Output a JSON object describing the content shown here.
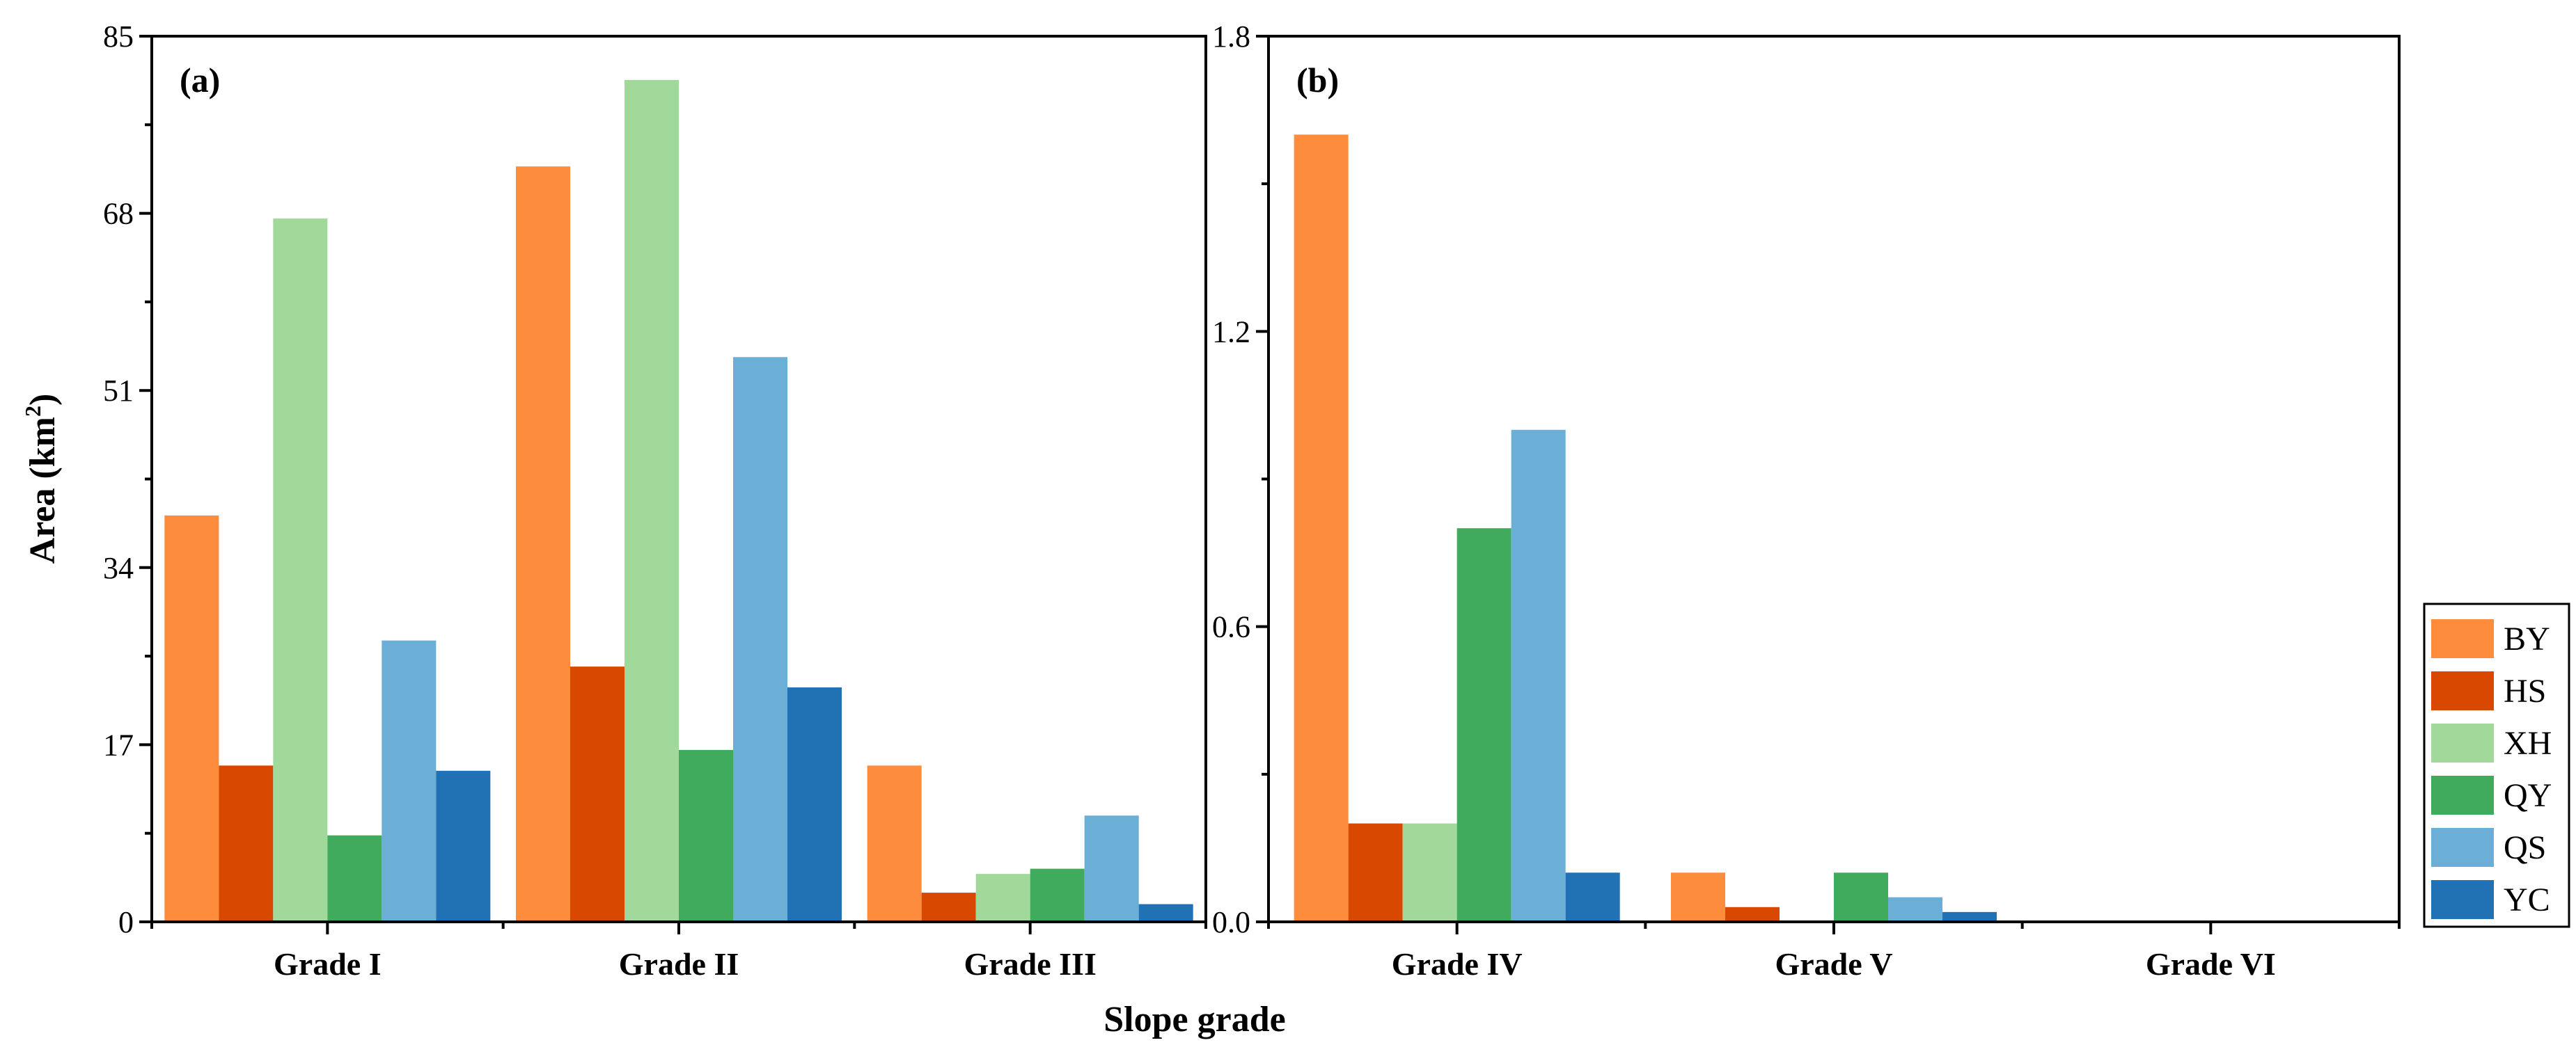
{
  "chart_data": [
    {
      "panel": "(a)",
      "type": "bar",
      "categories": [
        "Grade I",
        "Grade II",
        "Grade III"
      ],
      "series": [
        {
          "name": "BY",
          "values": [
            39,
            72.5,
            15
          ]
        },
        {
          "name": "HS",
          "values": [
            15,
            24.5,
            2.8
          ]
        },
        {
          "name": "XH",
          "values": [
            67.5,
            80.8,
            4.6
          ]
        },
        {
          "name": "QY",
          "values": [
            8.3,
            16.5,
            5.1
          ]
        },
        {
          "name": "QS",
          "values": [
            27,
            54.2,
            10.2
          ]
        },
        {
          "name": "YC",
          "values": [
            14.5,
            22.5,
            1.7
          ]
        }
      ],
      "ylim": [
        0,
        85
      ],
      "yticks": [
        0,
        17,
        34,
        51,
        68,
        85
      ],
      "ylabel": "Area (km²)",
      "ylabel_main": "Area (km",
      "ylabel_sup": "2",
      "ylabel_end": ")"
    },
    {
      "panel": "(b)",
      "type": "bar",
      "categories": [
        "Grade IV",
        "Grade V",
        "Grade VI"
      ],
      "series": [
        {
          "name": "BY",
          "values": [
            1.6,
            0.1,
            0
          ]
        },
        {
          "name": "HS",
          "values": [
            0.2,
            0.03,
            0
          ]
        },
        {
          "name": "XH",
          "values": [
            0.2,
            0,
            0
          ]
        },
        {
          "name": "QY",
          "values": [
            0.8,
            0.1,
            0
          ]
        },
        {
          "name": "QS",
          "values": [
            1.0,
            0.05,
            0
          ]
        },
        {
          "name": "YC",
          "values": [
            0.1,
            0.02,
            0
          ]
        }
      ],
      "ylim": [
        0,
        1.8
      ],
      "yticks": [
        "0.0",
        "0.6",
        "1.2",
        "1.8"
      ]
    }
  ],
  "xlabel": "Slope grade",
  "legend": [
    {
      "name": "BY",
      "color": "#FD8D3C"
    },
    {
      "name": "HS",
      "color": "#D94801"
    },
    {
      "name": "XH",
      "color": "#A1D99B"
    },
    {
      "name": "QY",
      "color": "#41AB5D"
    },
    {
      "name": "QS",
      "color": "#6BAED6"
    },
    {
      "name": "YC",
      "color": "#2171B5"
    }
  ]
}
